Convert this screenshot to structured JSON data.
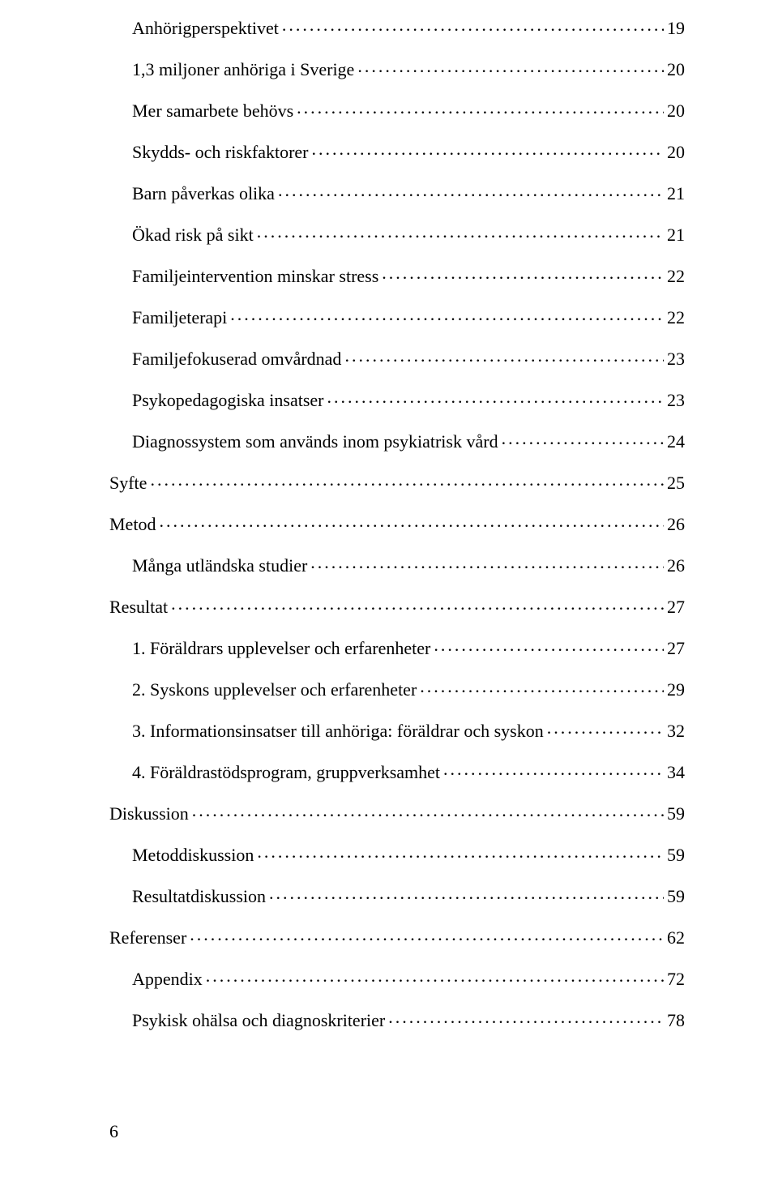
{
  "toc": [
    {
      "label": "Anhörigperspektivet",
      "page": "19",
      "indent": 1
    },
    {
      "label": "1,3 miljoner anhöriga i Sverige",
      "page": "20",
      "indent": 1
    },
    {
      "label": "Mer samarbete behövs",
      "page": "20",
      "indent": 1
    },
    {
      "label": "Skydds- och riskfaktorer",
      "page": "20",
      "indent": 1
    },
    {
      "label": "Barn påverkas olika",
      "page": "21",
      "indent": 1
    },
    {
      "label": "Ökad risk på sikt",
      "page": "21",
      "indent": 1
    },
    {
      "label": "Familjeintervention minskar stress",
      "page": "22",
      "indent": 1
    },
    {
      "label": "Familjeterapi",
      "page": "22",
      "indent": 1
    },
    {
      "label": "Familjefokuserad omvårdnad",
      "page": "23",
      "indent": 1
    },
    {
      "label": "Psykopedagogiska insatser",
      "page": "23",
      "indent": 1
    },
    {
      "label": "Diagnossystem som används inom psykiatrisk vård",
      "page": "24",
      "indent": 1
    },
    {
      "label": "Syfte",
      "page": "25",
      "indent": 0
    },
    {
      "label": "Metod",
      "page": "26",
      "indent": 0
    },
    {
      "label": "Många utländska studier",
      "page": "26",
      "indent": 1
    },
    {
      "label": "Resultat",
      "page": "27",
      "indent": 0
    },
    {
      "label": "1. Föräldrars upplevelser och erfarenheter",
      "page": "27",
      "indent": 1
    },
    {
      "label": "2. Syskons upplevelser och erfarenheter",
      "page": "29",
      "indent": 1
    },
    {
      "label": "3. Informationsinsatser till anhöriga: föräldrar och syskon",
      "page": "32",
      "indent": 1
    },
    {
      "label": "4. Föräldrastödsprogram, gruppverksamhet",
      "page": "34",
      "indent": 1
    },
    {
      "label": "Diskussion",
      "page": "59",
      "indent": 0
    },
    {
      "label": "Metoddiskussion",
      "page": "59",
      "indent": 1
    },
    {
      "label": "Resultatdiskussion",
      "page": "59",
      "indent": 1
    },
    {
      "label": "Referenser",
      "page": "62",
      "indent": 0
    },
    {
      "label": "Appendix",
      "page": "72",
      "indent": 1
    },
    {
      "label": "Psykisk ohälsa och diagnoskriterier",
      "page": "78",
      "indent": 1
    }
  ],
  "pageNumber": "6"
}
